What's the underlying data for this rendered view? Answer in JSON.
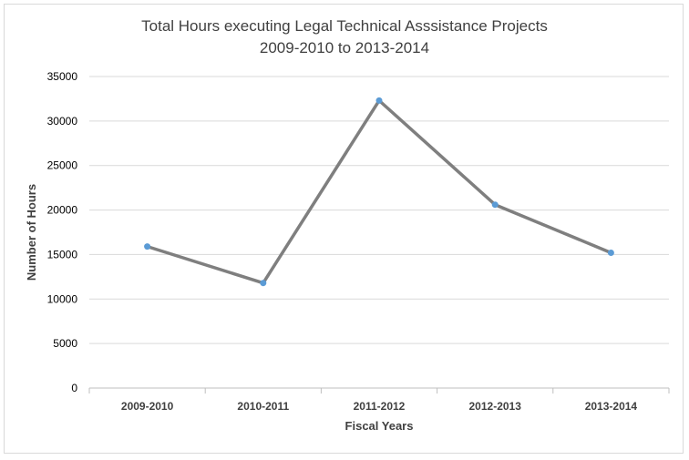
{
  "chart_data": {
    "type": "line",
    "title": "Total Hours executing Legal Technical Asssistance Projects",
    "subtitle": "2009-2010 to 2013-2014",
    "xlabel": "Fiscal Years",
    "ylabel": "Number of Hours",
    "categories": [
      "2009-2010",
      "2010-2011",
      "2011-2012",
      "2012-2013",
      "2013-2014"
    ],
    "series": [
      {
        "values": [
          15900,
          11800,
          32300,
          20600,
          15200
        ]
      }
    ],
    "ylim": [
      0,
      35000
    ],
    "yticks": [
      0,
      5000,
      10000,
      15000,
      20000,
      25000,
      30000,
      35000
    ],
    "grid": true,
    "legend": "none",
    "line_color": "#7f7f7f",
    "marker_color": "#5b9bd5",
    "grid_color": "#d9d9d9"
  }
}
